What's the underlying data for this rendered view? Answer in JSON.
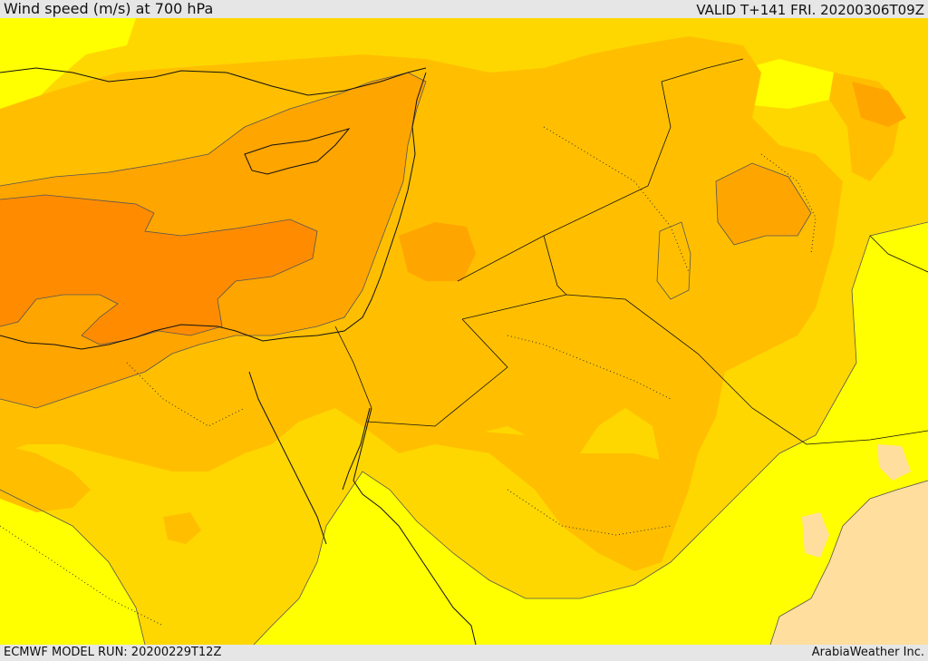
{
  "header": {
    "title": "Wind speed (m/s) at 700 hPa",
    "valid": "VALID T+141 FRI. 20200306T09Z"
  },
  "footer": {
    "model_run": "ECMWF MODEL RUN: 20200229T12Z",
    "brand": "ArabiaWeather Inc."
  },
  "colors": {
    "band_lightest": "#ffde9e",
    "band_yellow": "#ffff00",
    "band_gold": "#ffd700",
    "band_amber": "#ffbf00",
    "band_orange": "#ffa500",
    "band_dark_orange": "#ff8c00",
    "bar_background": "#e6e6e6"
  }
}
